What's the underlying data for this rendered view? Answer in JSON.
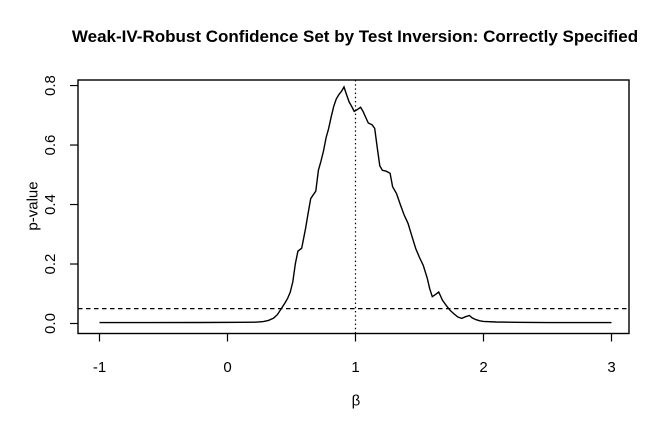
{
  "chart_data": {
    "type": "line",
    "title": "Weak-IV-Robust Confidence Set by Test Inversion: Correctly Specified",
    "xlabel": "β",
    "ylabel": "p-value",
    "xlim": [
      -1,
      3
    ],
    "ylim": [
      0,
      0.8
    ],
    "x_ticks": [
      -1,
      0,
      1,
      2,
      3
    ],
    "x_tick_labels": [
      "-1",
      "0",
      "1",
      "2",
      "3"
    ],
    "y_ticks": [
      0.0,
      0.2,
      0.4,
      0.6,
      0.8
    ],
    "y_tick_labels": [
      "0.0",
      "0.2",
      "0.4",
      "0.6",
      "0.8"
    ],
    "grid": false,
    "legend": null,
    "line_color": "#000000",
    "reference_lines": [
      {
        "type": "hline",
        "value": 0.05,
        "style": "dashed"
      },
      {
        "type": "vline",
        "value": 1.0,
        "style": "dotted"
      }
    ],
    "series": [
      {
        "name": "p_value_curve",
        "points": [
          [
            -1.0,
            0.003
          ],
          [
            -0.6,
            0.003
          ],
          [
            -0.2,
            0.0035
          ],
          [
            0.1,
            0.004
          ],
          [
            0.22,
            0.0045
          ],
          [
            0.28,
            0.0065
          ],
          [
            0.32,
            0.0105
          ],
          [
            0.36,
            0.018
          ],
          [
            0.39,
            0.03
          ],
          [
            0.42,
            0.05
          ],
          [
            0.45,
            0.07
          ],
          [
            0.47,
            0.085
          ],
          [
            0.49,
            0.105
          ],
          [
            0.51,
            0.14
          ],
          [
            0.53,
            0.2
          ],
          [
            0.55,
            0.243
          ],
          [
            0.58,
            0.253
          ],
          [
            0.61,
            0.32
          ],
          [
            0.63,
            0.37
          ],
          [
            0.65,
            0.42
          ],
          [
            0.67,
            0.433
          ],
          [
            0.69,
            0.445
          ],
          [
            0.71,
            0.515
          ],
          [
            0.73,
            0.545
          ],
          [
            0.75,
            0.58
          ],
          [
            0.77,
            0.625
          ],
          [
            0.79,
            0.655
          ],
          [
            0.81,
            0.695
          ],
          [
            0.83,
            0.73
          ],
          [
            0.85,
            0.755
          ],
          [
            0.87,
            0.77
          ],
          [
            0.89,
            0.78
          ],
          [
            0.91,
            0.795
          ],
          [
            0.93,
            0.77
          ],
          [
            0.95,
            0.745
          ],
          [
            0.97,
            0.73
          ],
          [
            0.99,
            0.713
          ],
          [
            1.01,
            0.718
          ],
          [
            1.04,
            0.727
          ],
          [
            1.06,
            0.712
          ],
          [
            1.08,
            0.693
          ],
          [
            1.1,
            0.674
          ],
          [
            1.13,
            0.668
          ],
          [
            1.15,
            0.656
          ],
          [
            1.17,
            0.59
          ],
          [
            1.19,
            0.53
          ],
          [
            1.21,
            0.515
          ],
          [
            1.24,
            0.512
          ],
          [
            1.27,
            0.505
          ],
          [
            1.29,
            0.46
          ],
          [
            1.32,
            0.437
          ],
          [
            1.35,
            0.4
          ],
          [
            1.38,
            0.365
          ],
          [
            1.41,
            0.337
          ],
          [
            1.44,
            0.295
          ],
          [
            1.47,
            0.252
          ],
          [
            1.5,
            0.222
          ],
          [
            1.53,
            0.195
          ],
          [
            1.56,
            0.153
          ],
          [
            1.58,
            0.117
          ],
          [
            1.6,
            0.09
          ],
          [
            1.63,
            0.099
          ],
          [
            1.65,
            0.106
          ],
          [
            1.68,
            0.078
          ],
          [
            1.71,
            0.06
          ],
          [
            1.74,
            0.044
          ],
          [
            1.77,
            0.032
          ],
          [
            1.8,
            0.022
          ],
          [
            1.83,
            0.017
          ],
          [
            1.86,
            0.023
          ],
          [
            1.89,
            0.027
          ],
          [
            1.91,
            0.019
          ],
          [
            1.94,
            0.013
          ],
          [
            1.97,
            0.009
          ],
          [
            2.0,
            0.007
          ],
          [
            2.1,
            0.005
          ],
          [
            2.25,
            0.004
          ],
          [
            2.5,
            0.003
          ],
          [
            2.75,
            0.003
          ],
          [
            3.0,
            0.003
          ]
        ]
      }
    ]
  }
}
